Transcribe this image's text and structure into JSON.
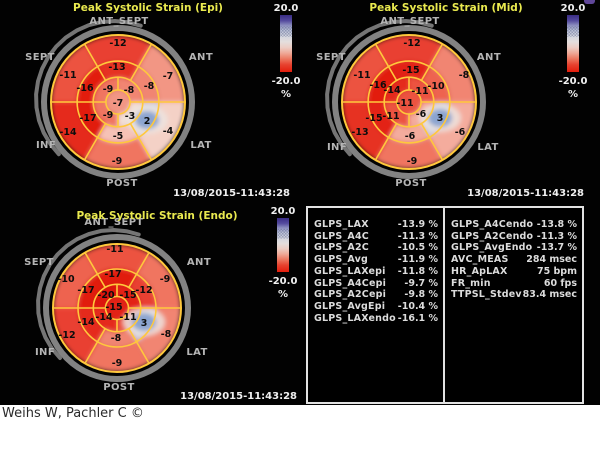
{
  "credit": "Weihs W, Pachler C ©",
  "colorbar": {
    "max": "20.0",
    "min": "-20.0",
    "unit": "%"
  },
  "plots": [
    {
      "id": "epi",
      "title": "Peak Systolic Strain (Epi)",
      "timestamp": "13/08/2015-11:43:28",
      "region_labels": {
        "top": "ANT_SEPT",
        "left": "SEPT",
        "right": "ANT",
        "bottom_left": "INF",
        "bottom_right": "LAT",
        "bottom": "POST"
      },
      "segments": {
        "apex": -7,
        "apical": {
          "sept": -9,
          "ant": -8,
          "inf": -9,
          "lat": -3
        },
        "mid": {
          "ant_sept": -13,
          "ant": -8,
          "sept": -16,
          "inf": -17,
          "post": -5,
          "lat": 2
        },
        "basal": {
          "ant_sept": -12,
          "ant": -7,
          "sept": -11,
          "inf": -14,
          "post": -9,
          "lat": -4
        }
      }
    },
    {
      "id": "mid",
      "title": "Peak Systolic Strain (Mid)",
      "timestamp": "13/08/2015-11:43:28",
      "region_labels": {
        "top": "ANT_SEPT",
        "left": "SEPT",
        "right": "ANT",
        "bottom_left": "INF",
        "bottom_right": "LAT",
        "bottom": "POST"
      },
      "segments": {
        "apex": -11,
        "apical": {
          "sept": -14,
          "ant": -11,
          "inf": -11,
          "lat": -6
        },
        "mid": {
          "ant_sept": -15,
          "ant": -10,
          "sept": -16,
          "inf": -15,
          "post": -6,
          "lat": 3
        },
        "basal": {
          "ant_sept": -12,
          "ant": -8,
          "sept": -11,
          "inf": -13,
          "post": -9,
          "lat": -6
        }
      }
    },
    {
      "id": "endo",
      "title": "Peak Systolic Strain (Endo)",
      "timestamp": "13/08/2015-11:43:28",
      "region_labels": {
        "top": "ANT_SEPT",
        "left": "SEPT",
        "right": "ANT",
        "bottom_left": "INF",
        "bottom_right": "LAT",
        "bottom": "POST"
      },
      "segments": {
        "apex": -15,
        "apical": {
          "sept": -20,
          "ant": -15,
          "inf": -14,
          "lat": -11
        },
        "mid": {
          "ant_sept": -17,
          "ant": -12,
          "sept": -17,
          "inf": -14,
          "post": -8,
          "lat": 3
        },
        "basal": {
          "ant_sept": -11,
          "ant": -9,
          "sept": -10,
          "inf": -12,
          "post": -9,
          "lat": -8
        }
      }
    }
  ],
  "table": {
    "left": [
      {
        "label": "GLPS_LAX",
        "value": "-13.9 %"
      },
      {
        "label": "GLPS_A4C",
        "value": "-11.3 %"
      },
      {
        "label": "GLPS_A2C",
        "value": "-10.5 %"
      },
      {
        "label": "GLPS_Avg",
        "value": "-11.9 %"
      },
      {
        "label": "GLPS_LAXepi",
        "value": "-11.8 %"
      },
      {
        "label": "GLPS_A4Cepi",
        "value": "-9.7 %"
      },
      {
        "label": "GLPS_A2Cepi",
        "value": "-9.8 %"
      },
      {
        "label": "GLPS_AvgEpi",
        "value": "-10.4 %"
      },
      {
        "label": "GLPS_LAXendo",
        "value": "-16.1 %"
      }
    ],
    "right": [
      {
        "label": "GLPS_A4Cendo",
        "value": "-13.8 %"
      },
      {
        "label": "GLPS_A2Cendo",
        "value": "-11.3 %"
      },
      {
        "label": "GLPS_AvgEndo",
        "value": "-13.7 %"
      },
      {
        "label": "AVC_MEAS",
        "value": "284 msec"
      },
      {
        "label": "HR_ApLAX",
        "value": "75 bpm"
      },
      {
        "label": "FR_min",
        "value": "60 fps"
      },
      {
        "label": "TTPSL_Stdev",
        "value": "83.4 msec"
      }
    ]
  }
}
